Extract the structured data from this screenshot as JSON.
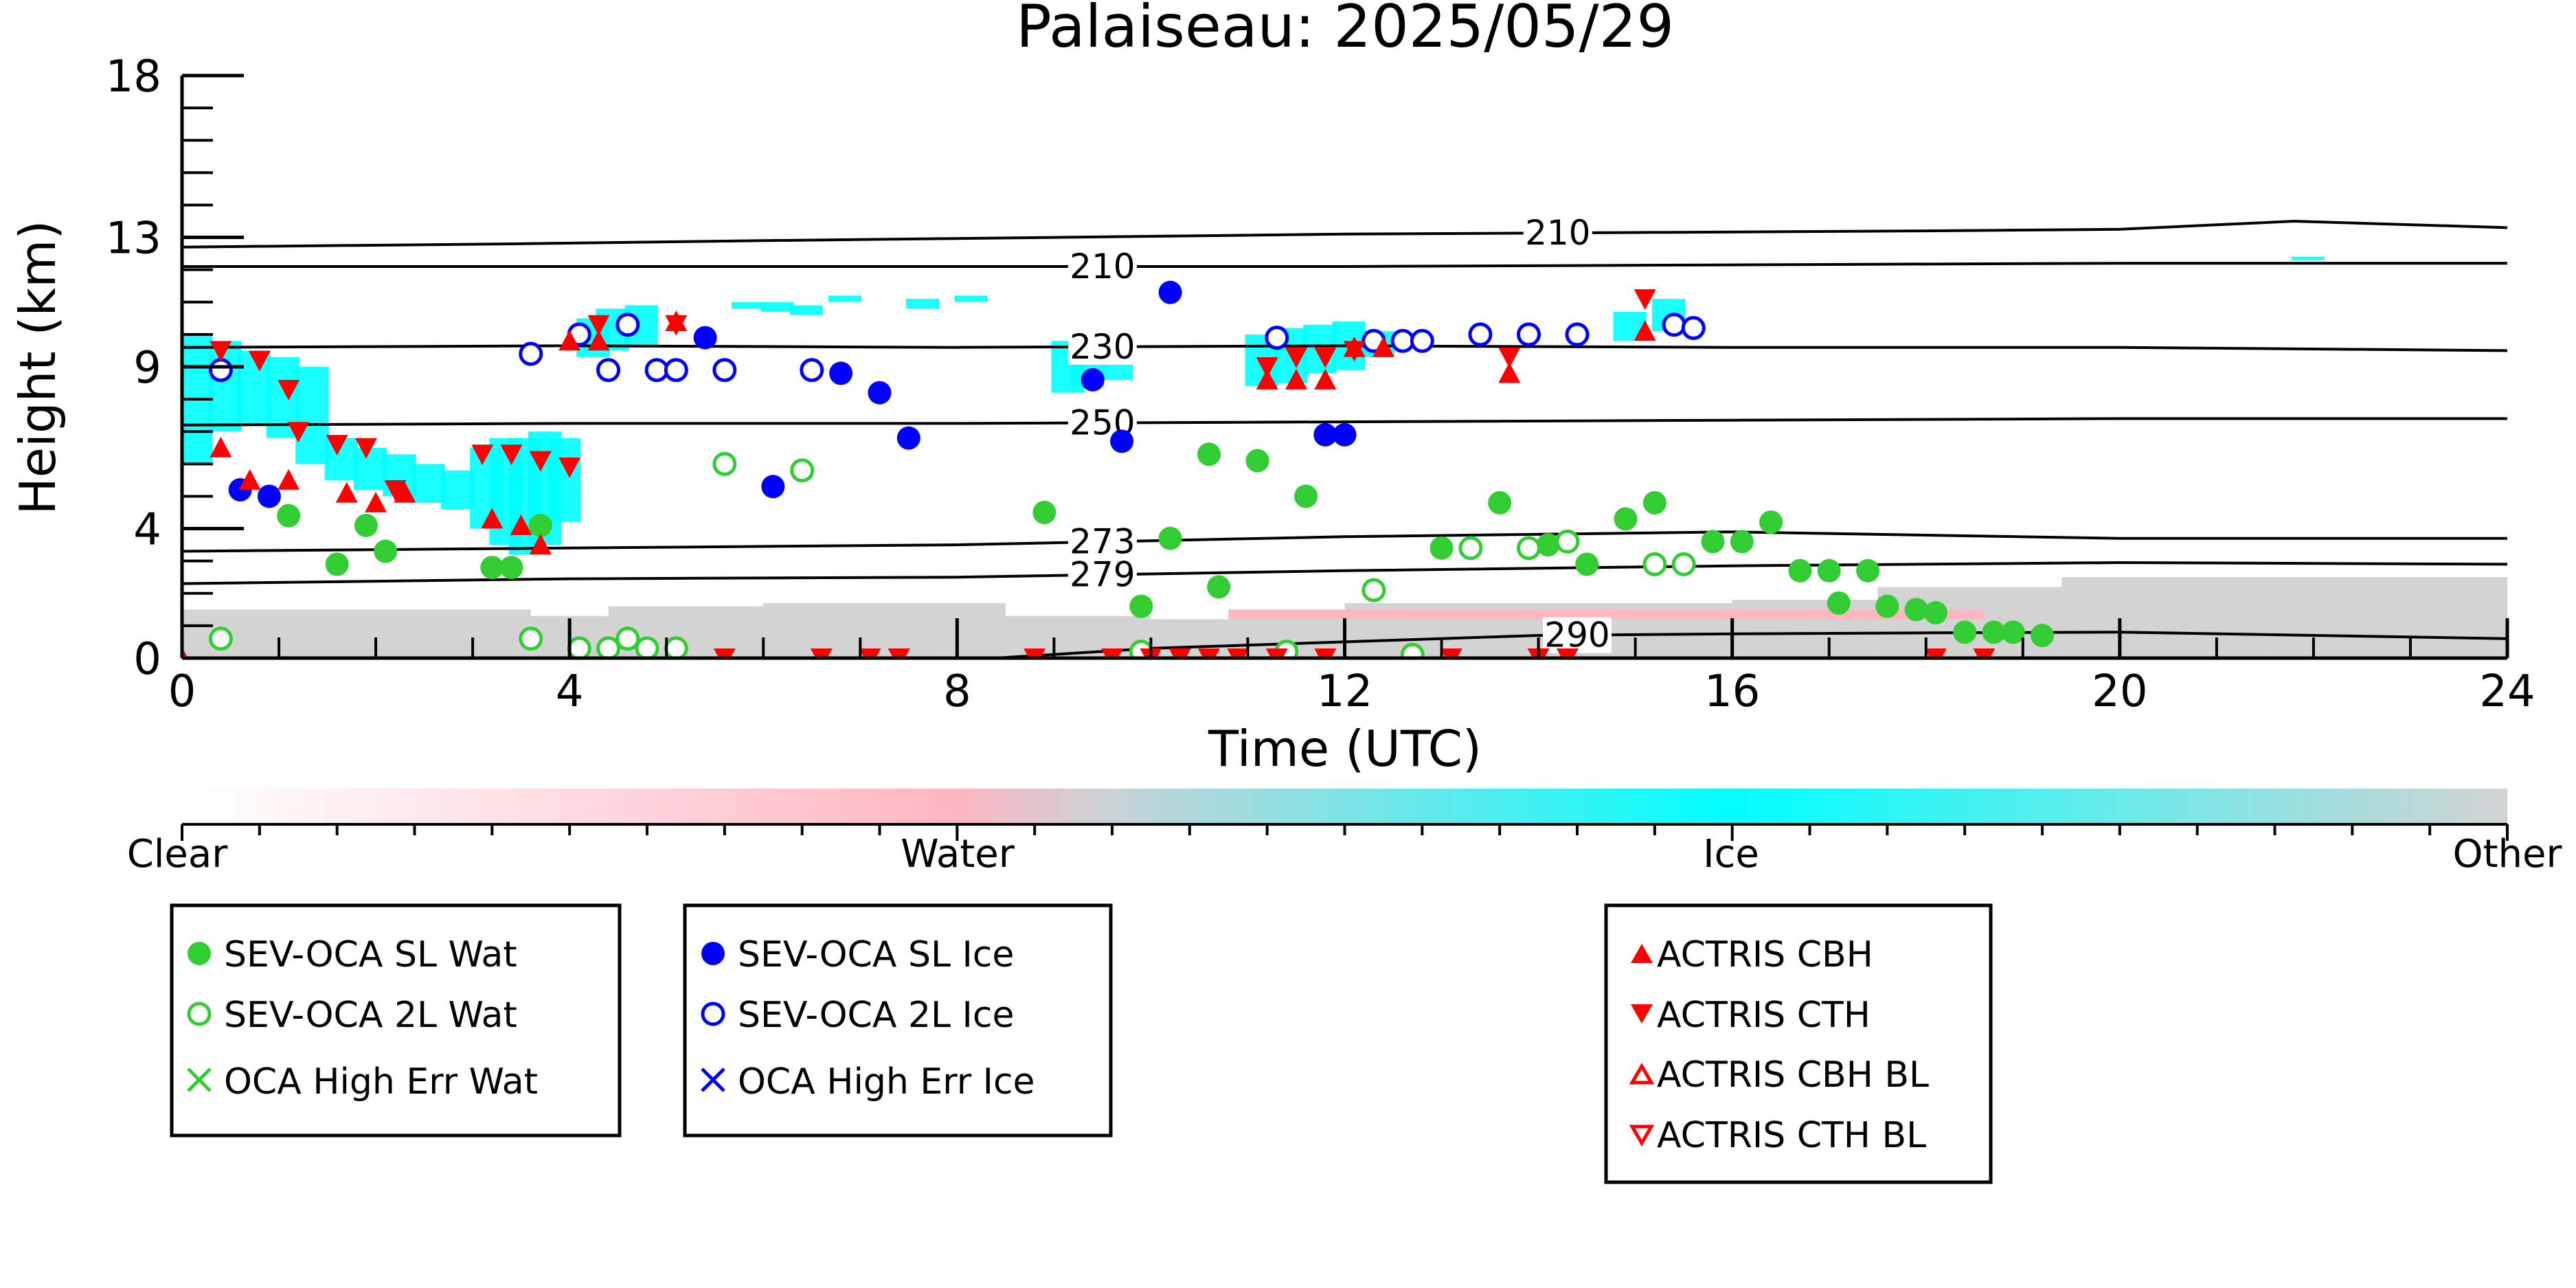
{
  "chart_data": {
    "type": "scatter",
    "title": "Palaiseau: 2025/05/29",
    "xlabel": "Time (UTC)",
    "ylabel": "Height (km)",
    "xlim": [
      0,
      24
    ],
    "ylim": [
      0,
      18
    ],
    "x_ticks": [
      0,
      4,
      8,
      12,
      16,
      20,
      24
    ],
    "x_ticklabels": [
      "0",
      "4",
      "8",
      "12",
      "16",
      "20",
      "24"
    ],
    "y_ticks": [
      0,
      4,
      9,
      13,
      18
    ],
    "y_ticklabels": [
      "0",
      "4",
      "9",
      "13",
      "18"
    ],
    "grid": false,
    "legend_location": "below-plot",
    "colorbar": {
      "labels": [
        "Clear",
        "Water",
        "Ice",
        "Other"
      ],
      "colors": [
        "#ffffff",
        "#ffb6c1",
        "#00ffff",
        "#d3d3d3"
      ]
    },
    "contours": [
      {
        "label": "210",
        "label_x": 14.2,
        "points": [
          [
            0,
            12.7
          ],
          [
            3.4,
            12.8
          ],
          [
            6,
            12.9
          ],
          [
            9,
            13
          ],
          [
            12,
            13.1
          ],
          [
            15,
            13.15
          ],
          [
            18,
            13.2
          ],
          [
            20,
            13.25
          ],
          [
            21.8,
            13.5
          ],
          [
            24,
            13.3
          ]
        ]
      },
      {
        "label": "210",
        "label_x": 9.5,
        "points": [
          [
            0,
            12.1
          ],
          [
            4,
            12.1
          ],
          [
            8,
            12.1
          ],
          [
            12,
            12.1
          ],
          [
            16,
            12.15
          ],
          [
            20,
            12.2
          ],
          [
            24,
            12.2
          ]
        ]
      },
      {
        "label": "230",
        "label_x": 9.5,
        "points": [
          [
            0,
            9.6
          ],
          [
            4,
            9.65
          ],
          [
            8,
            9.6
          ],
          [
            12,
            9.65
          ],
          [
            16,
            9.6
          ],
          [
            20,
            9.6
          ],
          [
            24,
            9.5
          ]
        ]
      },
      {
        "label": "250",
        "label_x": 9.5,
        "points": [
          [
            0,
            7.2
          ],
          [
            4,
            7.25
          ],
          [
            8,
            7.25
          ],
          [
            12,
            7.3
          ],
          [
            16,
            7.35
          ],
          [
            20,
            7.4
          ],
          [
            24,
            7.4
          ]
        ]
      },
      {
        "label": "273",
        "label_x": 9.5,
        "points": [
          [
            0,
            3.3
          ],
          [
            4,
            3.4
          ],
          [
            8,
            3.5
          ],
          [
            12,
            3.75
          ],
          [
            16,
            3.9
          ],
          [
            20,
            3.7
          ],
          [
            24,
            3.7
          ]
        ]
      },
      {
        "label": "279",
        "label_x": 9.5,
        "points": [
          [
            0,
            2.3
          ],
          [
            4,
            2.45
          ],
          [
            8,
            2.5
          ],
          [
            12,
            2.7
          ],
          [
            16,
            2.85
          ],
          [
            20,
            2.95
          ],
          [
            24,
            2.9
          ]
        ]
      },
      {
        "label": "290",
        "label_x": 14.4,
        "points": [
          [
            8.4,
            0
          ],
          [
            10,
            0.3
          ],
          [
            12,
            0.5
          ],
          [
            14,
            0.7
          ],
          [
            16,
            0.75
          ],
          [
            18,
            0.78
          ],
          [
            20,
            0.8
          ],
          [
            24,
            0.6
          ]
        ]
      }
    ],
    "series": [
      {
        "name": "SEV-OCA SL Wat",
        "color": "#32cd32",
        "marker": "circle",
        "filled": true,
        "points": [
          [
            1.1,
            4.4
          ],
          [
            1.6,
            2.9
          ],
          [
            1.9,
            4.1
          ],
          [
            2.1,
            3.3
          ],
          [
            3.2,
            2.8
          ],
          [
            3.4,
            2.8
          ],
          [
            3.7,
            4.1
          ],
          [
            8.9,
            4.5
          ],
          [
            9.9,
            1.6
          ],
          [
            10.2,
            3.7
          ],
          [
            10.6,
            6.3
          ],
          [
            10.7,
            2.2
          ],
          [
            11.1,
            6.1
          ],
          [
            11.6,
            5.0
          ],
          [
            13.0,
            3.4
          ],
          [
            13.6,
            4.8
          ],
          [
            14.1,
            3.5
          ],
          [
            14.5,
            2.9
          ],
          [
            14.9,
            4.3
          ],
          [
            15.2,
            4.8
          ],
          [
            15.8,
            3.6
          ],
          [
            16.1,
            3.6
          ],
          [
            16.4,
            4.2
          ],
          [
            16.7,
            2.7
          ],
          [
            17.0,
            2.7
          ],
          [
            17.1,
            1.7
          ],
          [
            17.4,
            2.7
          ],
          [
            17.6,
            1.6
          ],
          [
            17.9,
            1.5
          ],
          [
            18.1,
            1.4
          ],
          [
            18.4,
            0.8
          ],
          [
            18.7,
            0.8
          ],
          [
            18.9,
            0.8
          ],
          [
            19.2,
            0.7
          ]
        ]
      },
      {
        "name": "SEV-OCA 2L Wat",
        "color": "#32cd32",
        "marker": "circle",
        "filled": false,
        "points": [
          [
            0.4,
            0.6
          ],
          [
            3.6,
            0.6
          ],
          [
            4.1,
            0.3
          ],
          [
            4.4,
            0.3
          ],
          [
            4.6,
            0.6
          ],
          [
            4.8,
            0.3
          ],
          [
            5.1,
            0.3
          ],
          [
            5.6,
            6.0
          ],
          [
            6.4,
            5.8
          ],
          [
            9.9,
            0.2
          ],
          [
            11.4,
            0.2
          ],
          [
            12.3,
            2.1
          ],
          [
            12.7,
            0.1
          ],
          [
            13.3,
            3.4
          ],
          [
            13.9,
            3.4
          ],
          [
            14.3,
            3.6
          ],
          [
            15.2,
            2.9
          ],
          [
            15.5,
            2.9
          ]
        ]
      },
      {
        "name": "OCA High Err Wat",
        "color": "#32cd32",
        "marker": "x",
        "points": []
      },
      {
        "name": "SEV-OCA SL Ice",
        "color": "#0000ff",
        "marker": "circle",
        "filled": true,
        "points": [
          [
            0.6,
            5.2
          ],
          [
            0.9,
            5.0
          ],
          [
            5.4,
            9.9
          ],
          [
            6.1,
            5.3
          ],
          [
            6.8,
            8.8
          ],
          [
            7.2,
            8.2
          ],
          [
            7.5,
            6.8
          ],
          [
            9.4,
            8.6
          ],
          [
            9.7,
            6.7
          ],
          [
            10.2,
            11.3
          ],
          [
            11.8,
            6.9
          ],
          [
            12.0,
            6.9
          ]
        ]
      },
      {
        "name": "SEV-OCA 2L Ice",
        "color": "#0000ff",
        "marker": "circle",
        "filled": false,
        "points": [
          [
            0.4,
            8.9
          ],
          [
            3.6,
            9.4
          ],
          [
            4.1,
            10.0
          ],
          [
            4.4,
            8.9
          ],
          [
            4.6,
            10.3
          ],
          [
            4.9,
            8.9
          ],
          [
            5.1,
            8.9
          ],
          [
            5.6,
            8.9
          ],
          [
            6.5,
            8.9
          ],
          [
            11.3,
            9.9
          ],
          [
            12.3,
            9.8
          ],
          [
            12.6,
            9.8
          ],
          [
            12.8,
            9.8
          ],
          [
            13.4,
            10.0
          ],
          [
            13.9,
            10.0
          ],
          [
            14.4,
            10.0
          ],
          [
            15.4,
            10.3
          ],
          [
            15.6,
            10.2
          ]
        ]
      },
      {
        "name": "OCA High Err Ice",
        "color": "#0000ff",
        "marker": "x",
        "points": []
      },
      {
        "name": "ACTRIS CBH",
        "color": "#ff0000",
        "marker": "triangle-up",
        "filled": true,
        "points": [
          [
            0.4,
            6.5
          ],
          [
            0.7,
            5.5
          ],
          [
            1.1,
            5.5
          ],
          [
            1.7,
            5.1
          ],
          [
            2.0,
            4.8
          ],
          [
            2.3,
            5.1
          ],
          [
            3.2,
            4.3
          ],
          [
            3.5,
            4.1
          ],
          [
            3.7,
            3.5
          ],
          [
            4.0,
            9.8
          ],
          [
            4.3,
            9.8
          ],
          [
            5.1,
            10.4
          ],
          [
            11.2,
            8.6
          ],
          [
            11.5,
            8.6
          ],
          [
            11.8,
            8.6
          ],
          [
            12.1,
            9.6
          ],
          [
            12.4,
            9.6
          ],
          [
            13.7,
            8.8
          ],
          [
            15.1,
            10.1
          ],
          [
            0.0,
            0.0
          ]
        ]
      },
      {
        "name": "ACTRIS CTH",
        "color": "#ff0000",
        "marker": "triangle-down",
        "filled": true,
        "points": [
          [
            0.4,
            9.5
          ],
          [
            0.8,
            9.2
          ],
          [
            1.1,
            8.3
          ],
          [
            1.2,
            7.0
          ],
          [
            1.6,
            6.6
          ],
          [
            1.9,
            6.5
          ],
          [
            2.2,
            5.2
          ],
          [
            3.1,
            6.3
          ],
          [
            3.4,
            6.3
          ],
          [
            3.7,
            6.1
          ],
          [
            4.0,
            5.9
          ],
          [
            4.3,
            10.3
          ],
          [
            5.1,
            10.3
          ],
          [
            11.2,
            9.0
          ],
          [
            11.5,
            9.3
          ],
          [
            11.8,
            9.3
          ],
          [
            12.1,
            9.5
          ],
          [
            13.7,
            9.3
          ],
          [
            15.1,
            11.1
          ],
          [
            5.6,
            0.0
          ],
          [
            6.6,
            0.0
          ],
          [
            7.1,
            0.0
          ],
          [
            7.4,
            0.0
          ],
          [
            8.8,
            0.0
          ],
          [
            9.6,
            0.0
          ],
          [
            10.0,
            0.0
          ],
          [
            10.3,
            0.0
          ],
          [
            10.6,
            0.0
          ],
          [
            10.9,
            0.0
          ],
          [
            11.3,
            0.0
          ],
          [
            11.8,
            0.0
          ],
          [
            13.1,
            0.0
          ],
          [
            14.0,
            0.0
          ],
          [
            14.3,
            0.0
          ],
          [
            18.1,
            0.0
          ],
          [
            18.6,
            0.0
          ]
        ]
      },
      {
        "name": "ACTRIS CBH BL",
        "color": "#ff0000",
        "marker": "triangle-up",
        "filled": false,
        "points": []
      },
      {
        "name": "ACTRIS CTH BL",
        "color": "#ff0000",
        "marker": "triangle-down",
        "filled": false,
        "points": []
      }
    ],
    "radar_ice_segments": [
      [
        0.0,
        6.0,
        10.0
      ],
      [
        0.3,
        7.0,
        9.8
      ],
      [
        0.6,
        7.2,
        9.5
      ],
      [
        0.9,
        6.8,
        9.3
      ],
      [
        1.2,
        6.0,
        9.0
      ],
      [
        1.5,
        5.5,
        6.8
      ],
      [
        1.8,
        5.2,
        6.5
      ],
      [
        2.1,
        5.0,
        6.3
      ],
      [
        2.4,
        4.8,
        6.0
      ],
      [
        2.7,
        4.6,
        5.8
      ],
      [
        3.0,
        4.0,
        6.5
      ],
      [
        3.2,
        3.5,
        6.8
      ],
      [
        3.4,
        3.2,
        6.8
      ],
      [
        3.6,
        3.5,
        7.0
      ],
      [
        3.8,
        4.2,
        6.8
      ],
      [
        4.1,
        9.3,
        10.5
      ],
      [
        4.3,
        9.5,
        10.8
      ],
      [
        4.6,
        9.6,
        10.9
      ],
      [
        5.7,
        10.8,
        11.0
      ],
      [
        6.0,
        10.7,
        11.0
      ],
      [
        6.3,
        10.6,
        10.9
      ],
      [
        6.7,
        11.0,
        11.2
      ],
      [
        7.5,
        10.8,
        11.1
      ],
      [
        8.0,
        11.0,
        11.2
      ],
      [
        9.0,
        8.2,
        9.8
      ],
      [
        9.2,
        8.4,
        9.9
      ],
      [
        9.5,
        8.6,
        9.6
      ],
      [
        11.0,
        8.4,
        10.0
      ],
      [
        11.3,
        8.5,
        10.2
      ],
      [
        11.6,
        8.8,
        10.3
      ],
      [
        11.9,
        8.9,
        10.4
      ],
      [
        12.2,
        9.3,
        10.1
      ],
      [
        14.8,
        9.8,
        10.7
      ],
      [
        15.2,
        10.1,
        11.1
      ],
      [
        21.8,
        12.3,
        12.4
      ]
    ],
    "radar_other_blocks": [
      [
        0.0,
        0.0,
        1.5
      ],
      [
        3.6,
        0.0,
        1.3
      ],
      [
        4.4,
        0.0,
        1.6
      ],
      [
        6.0,
        0.0,
        1.7
      ],
      [
        7.8,
        0.0,
        1.7
      ],
      [
        8.5,
        0.0,
        1.3
      ],
      [
        10.0,
        0.0,
        1.2
      ],
      [
        12.0,
        0.0,
        1.7
      ],
      [
        14.0,
        0.0,
        1.7
      ],
      [
        16.0,
        0.0,
        1.8
      ],
      [
        17.5,
        0.0,
        2.2
      ],
      [
        19.4,
        0.0,
        2.5
      ],
      [
        21.5,
        0.0,
        2.5
      ]
    ],
    "radar_water_band": [
      10.8,
      18.6,
      1.2,
      1.5
    ]
  },
  "legend_boxes": [
    [
      "SEV-OCA SL Wat",
      "SEV-OCA 2L Wat",
      "OCA High Err Wat"
    ],
    [
      "SEV-OCA SL Ice",
      "SEV-OCA 2L Ice",
      "OCA High Err Ice"
    ],
    [
      "ACTRIS CBH",
      "ACTRIS CTH",
      "ACTRIS CBH BL",
      "ACTRIS CTH BL"
    ]
  ]
}
